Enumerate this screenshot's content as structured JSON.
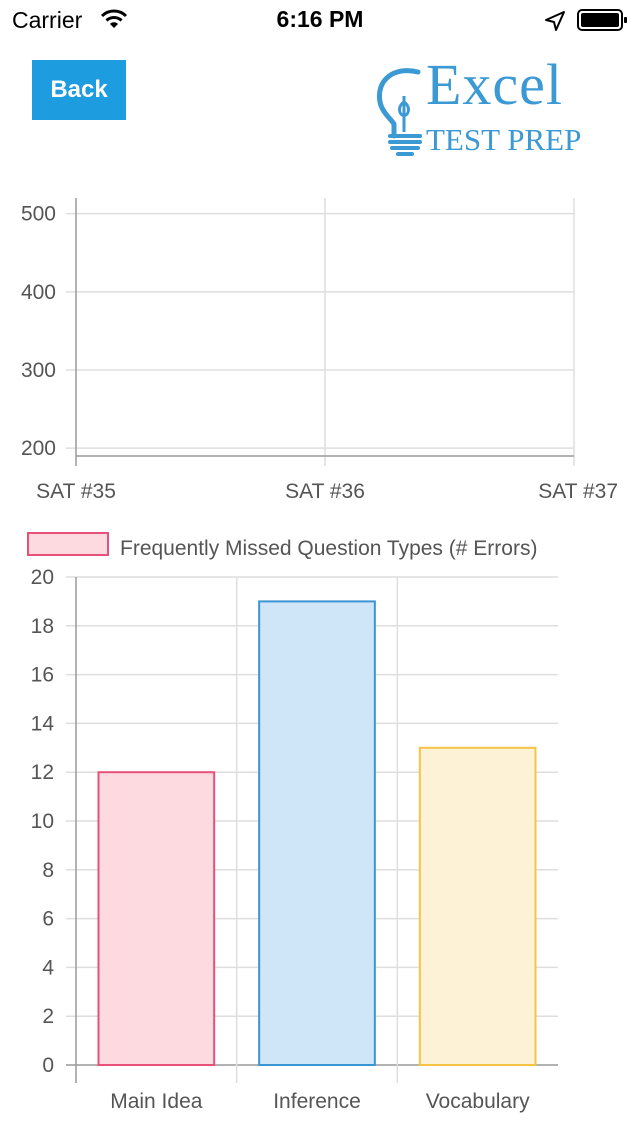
{
  "status_bar": {
    "carrier": "Carrier",
    "time": "6:16 PM"
  },
  "header": {
    "back_label": "Back",
    "logo": {
      "line1": "Excel",
      "line2": "TEST PREP",
      "color": "#3b99d4"
    },
    "back_color": "#1d9ce0"
  },
  "chart_data": [
    {
      "type": "line",
      "categories": [
        "SAT #35",
        "SAT #36",
        "SAT #37"
      ],
      "series": [],
      "y_ticks": [
        200,
        300,
        400,
        500
      ],
      "ylim": [
        190,
        520
      ],
      "grid": true
    },
    {
      "type": "bar",
      "categories": [
        "Main Idea",
        "Inference",
        "Vocabulary"
      ],
      "series": [
        {
          "name": "Frequently Missed Question Types (# Errors)",
          "values": [
            12,
            19,
            13
          ]
        }
      ],
      "bar_colors": [
        {
          "fill": "#fdd9e0",
          "stroke": "#e8517a"
        },
        {
          "fill": "#cfe5f8",
          "stroke": "#3b95d3"
        },
        {
          "fill": "#fdf2d5",
          "stroke": "#f5c445"
        }
      ],
      "legend_colors": {
        "fill": "#fdd9e0",
        "stroke": "#e8517a"
      },
      "y_ticks": [
        0,
        2,
        4,
        6,
        8,
        10,
        12,
        14,
        16,
        18,
        20
      ],
      "ylim": [
        0,
        20
      ],
      "legend_position": "top",
      "grid": true
    }
  ]
}
